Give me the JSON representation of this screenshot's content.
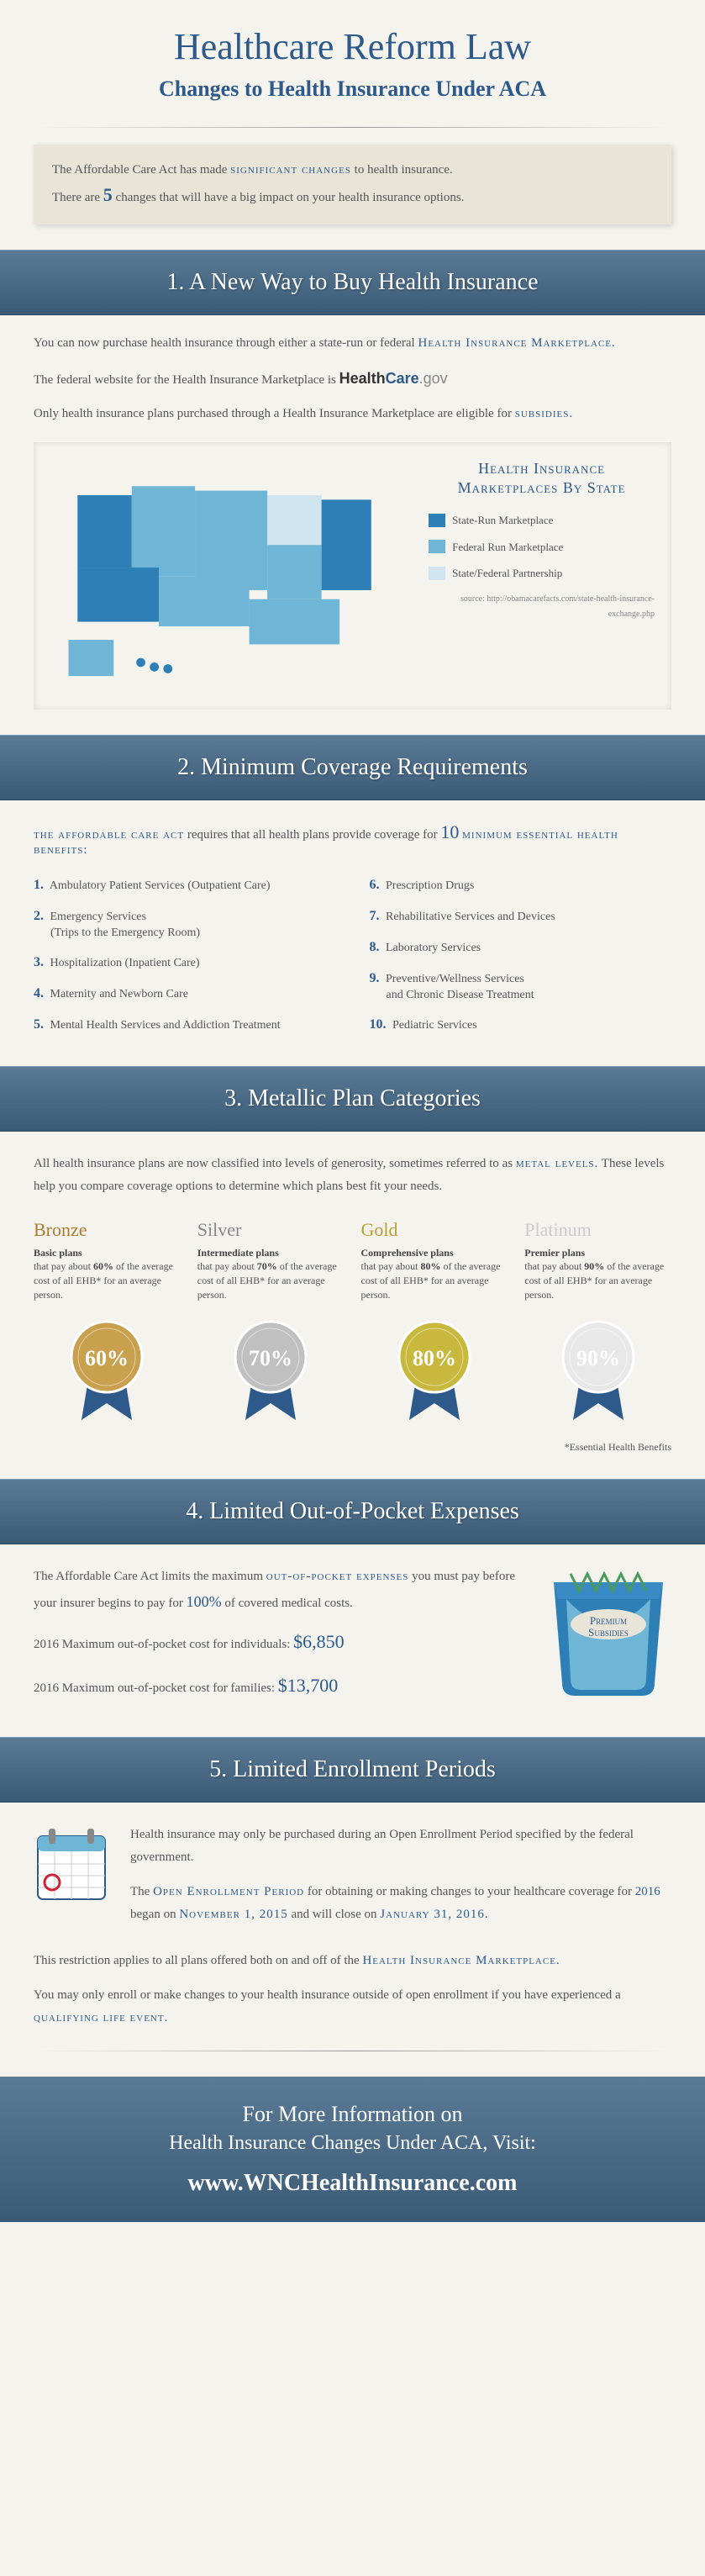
{
  "title": "Healthcare Reform Law",
  "subtitle": "Changes to Health Insurance Under ACA",
  "intro": {
    "line1_pre": "The Affordable Care Act has made ",
    "line1_highlight": "significant changes",
    "line1_post": " to health insurance.",
    "line2_pre": "There are ",
    "count": "5",
    "line2_post": " changes that will have a big impact on your health insurance options."
  },
  "sections": {
    "s1": {
      "header": "1. A New Way to Buy Health Insurance",
      "p1_pre": "You can now purchase health insurance through either a state-run or federal ",
      "p1_marketplace": "Health Insurance Marketplace.",
      "p2": "The federal website for the Health Insurance Marketplace is ",
      "logo_health": "Health",
      "logo_care": "Care",
      "logo_gov": ".gov",
      "p3_pre": "Only health insurance plans purchased through a Health Insurance Marketplace are eligible for ",
      "p3_sub": "subsidies.",
      "map": {
        "title": "Health Insurance Marketplaces By State",
        "legend": [
          {
            "color": "#2d7fb5",
            "label": "State-Run Marketplace"
          },
          {
            "color": "#6fb5d6",
            "label": "Federal Run Marketplace"
          },
          {
            "color": "#d0e5f0",
            "label": "State/Federal Partnership"
          }
        ],
        "source": "source: http://obamacarefacts.com/state-health-insurance-exchange.php"
      }
    },
    "s2": {
      "header": "2. Minimum Coverage Requirements",
      "intro_aca": "the affordable care act",
      "intro_mid": " requires that all health plans provide coverage for ",
      "intro_ten": "10",
      "intro_end": " minimum essential health benefits:",
      "benefits": [
        "Ambulatory Patient Services (Outpatient Care)",
        "Emergency Services\n(Trips to the Emergency Room)",
        "Hospitalization (Inpatient Care)",
        "Maternity and Newborn Care",
        "Mental Health Services and Addiction Treatment",
        "Prescription Drugs",
        "Rehabilitative Services and Devices",
        "Laboratory Services",
        "Preventive/Wellness Services\nand Chronic Disease Treatment",
        "Pediatric Services"
      ]
    },
    "s3": {
      "header": "3. Metallic Plan Categories",
      "intro_pre": "All health insurance plans are now classified into levels of generosity, sometimes referred to as ",
      "intro_metal": "metal levels.",
      "intro_post": " These levels help you compare coverage options to determine which plans best fit your needs.",
      "plans": [
        {
          "name": "Bronze",
          "color": "#a87b2e",
          "plan_type": "Basic plans",
          "pct": "60%",
          "badge_color": "#c9a04e"
        },
        {
          "name": "Silver",
          "color": "#888",
          "plan_type": "Intermediate plans",
          "pct": "70%",
          "badge_color": "#c0c0c0"
        },
        {
          "name": "Gold",
          "color": "#b8a030",
          "plan_type": "Comprehensive plans",
          "pct": "80%",
          "badge_color": "#c9b83e"
        },
        {
          "name": "Platinum",
          "color": "#ccc",
          "plan_type": "Premier plans",
          "pct": "90%",
          "badge_color": "#e8e8e8"
        }
      ],
      "desc_template_mid": "that pay about ",
      "desc_template_end": " of the average cost of all EHB* for an average person.",
      "ehb_note": "*Essential Health Benefits"
    },
    "s4": {
      "header": "4. Limited Out-of-Pocket Expenses",
      "p1_pre": "The Affordable Care Act limits the maximum ",
      "p1_oop": "out-of-pocket expenses",
      "p1_mid": " you must pay before your insurer begins to pay for ",
      "p1_pct": "100%",
      "p1_post": " of covered medical costs.",
      "ind_label": "2016 Maximum out-of-pocket cost for individuals: ",
      "ind_amount": "$6,850",
      "fam_label": "2016 Maximum out-of-pocket cost for families: ",
      "fam_amount": "$13,700",
      "pocket_label": "Premium Subsidies"
    },
    "s5": {
      "header": "5. Limited Enrollment Periods",
      "p1": "Health insurance may only be purchased during an Open Enrollment Period specified by the federal government.",
      "p2_pre": "The ",
      "p2_oep": "Open Enrollment Period",
      "p2_mid": " for obtaining or making changes to your healthcare coverage for ",
      "p2_year": "2016",
      "p2_began": " began on ",
      "p2_start": "November 1, 2015",
      "p2_close": " and will close on ",
      "p2_end": "January 31, 2016.",
      "p3_pre": "This restriction applies to all plans offered both on and off of the ",
      "p3_him": "Health Insurance Marketplace.",
      "p4_pre": "You may only enroll or make changes to your health insurance outside of open enrollment if you have experienced a ",
      "p4_qle": "qualifying life event."
    }
  },
  "footer": {
    "line1": "For More Information on",
    "line2": "Health Insurance Changes Under ACA, Visit:",
    "url": "www.WNCHealthInsurance.com"
  }
}
